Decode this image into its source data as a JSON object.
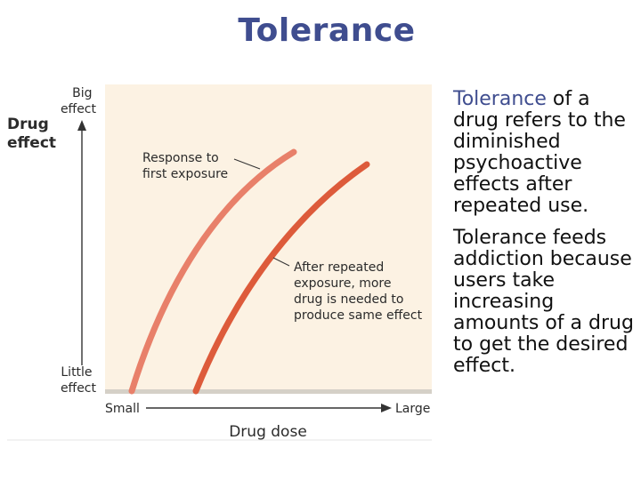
{
  "slide": {
    "title": "Tolerance",
    "paragraphs": [
      {
        "highlight": "Tolerance",
        "rest": " of a drug refers to the diminished psychoactive effects after repeated use."
      },
      {
        "highlight": "",
        "rest": "Tolerance feeds addiction because users take increasing amounts of a drug to get the desired effect."
      }
    ]
  },
  "figure": {
    "y_axis_title": [
      "Drug",
      "effect"
    ],
    "y_top_label": [
      "Big",
      "effect"
    ],
    "y_bottom_label": [
      "Little",
      "effect"
    ],
    "x_axis_title": "Drug dose",
    "x_left_label": "Small",
    "x_right_label": "Large",
    "curve_first_label": [
      "Response to",
      "first exposure"
    ],
    "curve_repeated_label": [
      "After repeated",
      "exposure, more",
      "drug is needed to",
      "produce same effect"
    ],
    "colors": {
      "background": "#fcf2e3",
      "curve_first": "#e8806a",
      "curve_repeated": "#dd5b3b",
      "baseline": "#d5d0c7",
      "text": "#2b2b2b",
      "accent": "#3f4d8f"
    }
  }
}
